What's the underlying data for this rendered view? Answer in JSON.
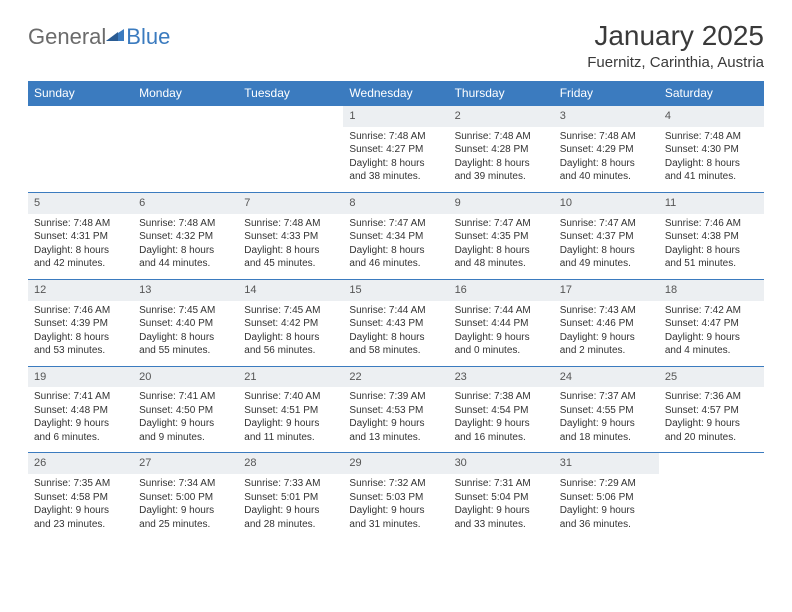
{
  "logo": {
    "gen": "General",
    "blue": "Blue"
  },
  "title": "January 2025",
  "location": "Fuernitz, Carinthia, Austria",
  "colors": {
    "header_bg": "#3b7bbf",
    "header_text": "#ffffff",
    "daynum_bg": "#eceff2",
    "border": "#3b7bbf",
    "body_text": "#333333"
  },
  "day_headers": [
    "Sunday",
    "Monday",
    "Tuesday",
    "Wednesday",
    "Thursday",
    "Friday",
    "Saturday"
  ],
  "weeks": [
    [
      null,
      null,
      null,
      {
        "n": "1",
        "sr": "7:48 AM",
        "ss": "4:27 PM",
        "dl": "8 hours and 38 minutes."
      },
      {
        "n": "2",
        "sr": "7:48 AM",
        "ss": "4:28 PM",
        "dl": "8 hours and 39 minutes."
      },
      {
        "n": "3",
        "sr": "7:48 AM",
        "ss": "4:29 PM",
        "dl": "8 hours and 40 minutes."
      },
      {
        "n": "4",
        "sr": "7:48 AM",
        "ss": "4:30 PM",
        "dl": "8 hours and 41 minutes."
      }
    ],
    [
      {
        "n": "5",
        "sr": "7:48 AM",
        "ss": "4:31 PM",
        "dl": "8 hours and 42 minutes."
      },
      {
        "n": "6",
        "sr": "7:48 AM",
        "ss": "4:32 PM",
        "dl": "8 hours and 44 minutes."
      },
      {
        "n": "7",
        "sr": "7:48 AM",
        "ss": "4:33 PM",
        "dl": "8 hours and 45 minutes."
      },
      {
        "n": "8",
        "sr": "7:47 AM",
        "ss": "4:34 PM",
        "dl": "8 hours and 46 minutes."
      },
      {
        "n": "9",
        "sr": "7:47 AM",
        "ss": "4:35 PM",
        "dl": "8 hours and 48 minutes."
      },
      {
        "n": "10",
        "sr": "7:47 AM",
        "ss": "4:37 PM",
        "dl": "8 hours and 49 minutes."
      },
      {
        "n": "11",
        "sr": "7:46 AM",
        "ss": "4:38 PM",
        "dl": "8 hours and 51 minutes."
      }
    ],
    [
      {
        "n": "12",
        "sr": "7:46 AM",
        "ss": "4:39 PM",
        "dl": "8 hours and 53 minutes."
      },
      {
        "n": "13",
        "sr": "7:45 AM",
        "ss": "4:40 PM",
        "dl": "8 hours and 55 minutes."
      },
      {
        "n": "14",
        "sr": "7:45 AM",
        "ss": "4:42 PM",
        "dl": "8 hours and 56 minutes."
      },
      {
        "n": "15",
        "sr": "7:44 AM",
        "ss": "4:43 PM",
        "dl": "8 hours and 58 minutes."
      },
      {
        "n": "16",
        "sr": "7:44 AM",
        "ss": "4:44 PM",
        "dl": "9 hours and 0 minutes."
      },
      {
        "n": "17",
        "sr": "7:43 AM",
        "ss": "4:46 PM",
        "dl": "9 hours and 2 minutes."
      },
      {
        "n": "18",
        "sr": "7:42 AM",
        "ss": "4:47 PM",
        "dl": "9 hours and 4 minutes."
      }
    ],
    [
      {
        "n": "19",
        "sr": "7:41 AM",
        "ss": "4:48 PM",
        "dl": "9 hours and 6 minutes."
      },
      {
        "n": "20",
        "sr": "7:41 AM",
        "ss": "4:50 PM",
        "dl": "9 hours and 9 minutes."
      },
      {
        "n": "21",
        "sr": "7:40 AM",
        "ss": "4:51 PM",
        "dl": "9 hours and 11 minutes."
      },
      {
        "n": "22",
        "sr": "7:39 AM",
        "ss": "4:53 PM",
        "dl": "9 hours and 13 minutes."
      },
      {
        "n": "23",
        "sr": "7:38 AM",
        "ss": "4:54 PM",
        "dl": "9 hours and 16 minutes."
      },
      {
        "n": "24",
        "sr": "7:37 AM",
        "ss": "4:55 PM",
        "dl": "9 hours and 18 minutes."
      },
      {
        "n": "25",
        "sr": "7:36 AM",
        "ss": "4:57 PM",
        "dl": "9 hours and 20 minutes."
      }
    ],
    [
      {
        "n": "26",
        "sr": "7:35 AM",
        "ss": "4:58 PM",
        "dl": "9 hours and 23 minutes."
      },
      {
        "n": "27",
        "sr": "7:34 AM",
        "ss": "5:00 PM",
        "dl": "9 hours and 25 minutes."
      },
      {
        "n": "28",
        "sr": "7:33 AM",
        "ss": "5:01 PM",
        "dl": "9 hours and 28 minutes."
      },
      {
        "n": "29",
        "sr": "7:32 AM",
        "ss": "5:03 PM",
        "dl": "9 hours and 31 minutes."
      },
      {
        "n": "30",
        "sr": "7:31 AM",
        "ss": "5:04 PM",
        "dl": "9 hours and 33 minutes."
      },
      {
        "n": "31",
        "sr": "7:29 AM",
        "ss": "5:06 PM",
        "dl": "9 hours and 36 minutes."
      },
      null
    ]
  ],
  "labels": {
    "sunrise": "Sunrise: ",
    "sunset": "Sunset: ",
    "daylight": "Daylight: "
  }
}
